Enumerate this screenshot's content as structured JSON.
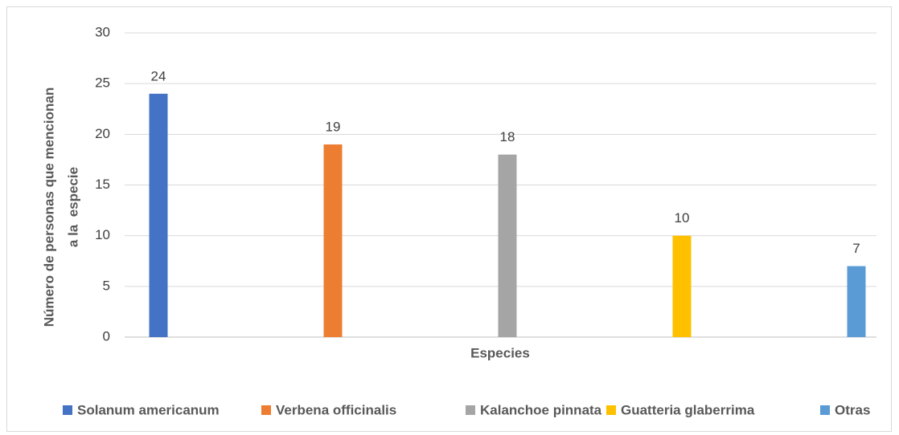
{
  "chart_data": {
    "type": "bar",
    "categories": [
      null
    ],
    "series": [
      {
        "name": "Solanum americanum",
        "color": "#4472c4",
        "values": [
          24
        ]
      },
      {
        "name": "Verbena officinalis",
        "color": "#ed7d31",
        "values": [
          19
        ]
      },
      {
        "name": "Kalanchoe pinnata",
        "color": "#a5a5a5",
        "values": [
          18
        ]
      },
      {
        "name": "Guatteria glaberrima",
        "color": "#ffc000",
        "values": [
          10
        ]
      },
      {
        "name": "Otras",
        "color": "#5b9bd5",
        "values": [
          7
        ]
      }
    ],
    "xlabel": "Especies",
    "ylabel": [
      "Número de personas que mencionan",
      "a la  especie"
    ],
    "ylim": [
      0,
      30
    ],
    "yticks": [
      0,
      5,
      10,
      15,
      20,
      25,
      30
    ],
    "grid": true,
    "legend": "bottom"
  }
}
